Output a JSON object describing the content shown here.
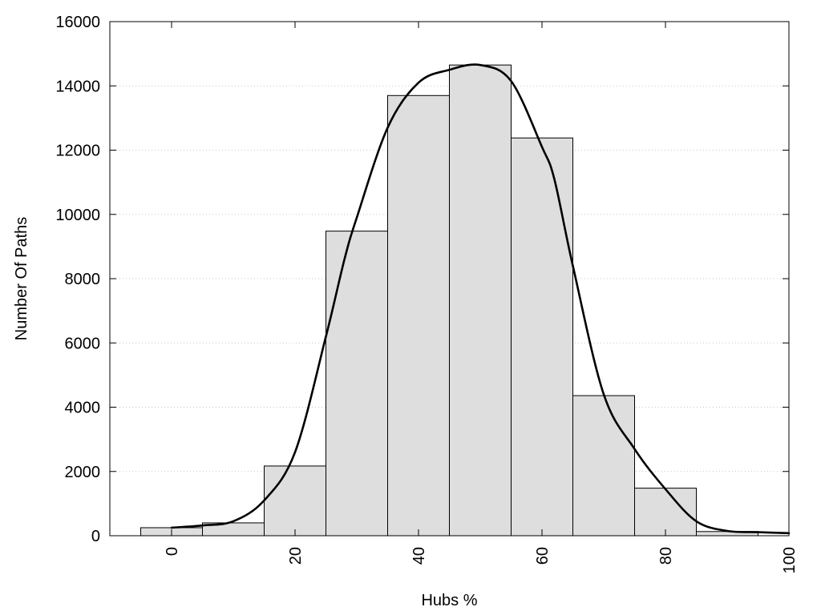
{
  "chart_data": {
    "type": "bar",
    "xlabel": "Hubs %",
    "ylabel": "Number Of Paths",
    "xlim": [
      -10,
      100
    ],
    "ylim": [
      0,
      16000
    ],
    "x_ticks": [
      0,
      20,
      40,
      60,
      80,
      100
    ],
    "y_ticks": [
      0,
      2000,
      4000,
      6000,
      8000,
      10000,
      12000,
      14000,
      16000
    ],
    "grid": "horizontal dotted",
    "bar_width": 10,
    "bars": {
      "x": [
        0,
        10,
        20,
        30,
        40,
        50,
        60,
        70,
        80,
        90
      ],
      "values": [
        250,
        400,
        2170,
        9480,
        13700,
        14650,
        12380,
        4360,
        1480,
        130
      ]
    },
    "curve": {
      "type": "line",
      "x": [
        0,
        5,
        10,
        15,
        20,
        25,
        28,
        30,
        35,
        40,
        45,
        50,
        55,
        60,
        62,
        65,
        70,
        75,
        80,
        85,
        90,
        95,
        100
      ],
      "values": [
        250,
        320,
        450,
        1100,
        2600,
        6200,
        8600,
        9900,
        12700,
        14100,
        14500,
        14650,
        14150,
        12100,
        11100,
        8400,
        4400,
        2700,
        1450,
        450,
        150,
        110,
        80
      ]
    },
    "colors": {
      "bar_fill": "#dedede",
      "bar_stroke": "#000000",
      "curve": "#000000"
    }
  }
}
